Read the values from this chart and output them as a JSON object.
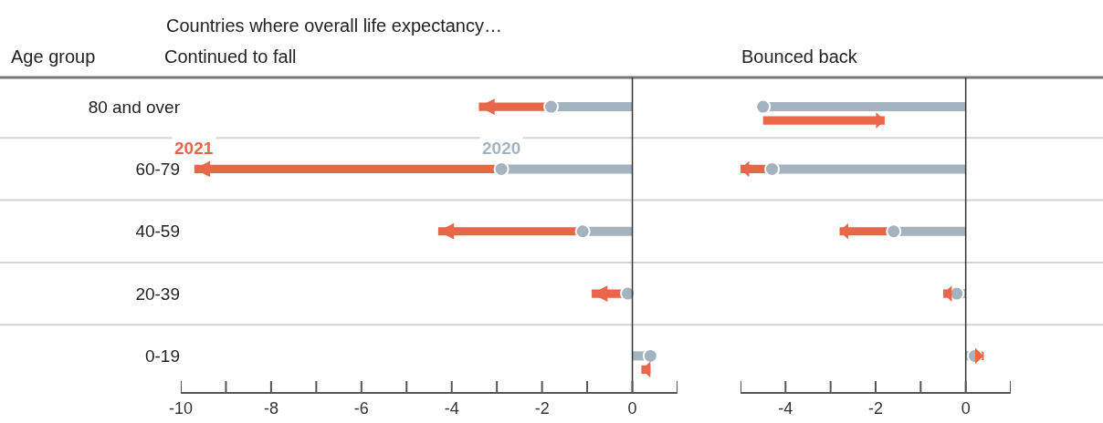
{
  "chart_data": [
    {
      "type": "bar",
      "orientation": "horizontal",
      "title": "Continued to fall",
      "ylabel": "Age group",
      "annotations": [
        "Countries where overall life expectancy…"
      ],
      "categories": [
        "80 and over",
        "60-79",
        "40-59",
        "20-39",
        "0-19"
      ],
      "xlim": [
        -10,
        1
      ],
      "xticks": [
        -10,
        {
          "value": -9,
          "label": null
        },
        -8,
        {
          "value": -7,
          "label": null
        },
        -6,
        {
          "value": -5,
          "label": null
        },
        -4,
        {
          "value": -3,
          "label": null
        },
        -2,
        {
          "value": -1,
          "label": null
        },
        0,
        {
          "value": 1,
          "label": null
        }
      ],
      "grid": "y",
      "ref_lines": [
        {
          "axis": "x",
          "value": 0,
          "color": "#333333"
        }
      ],
      "series": [
        {
          "name": "2020",
          "type": "lollipop",
          "marker": "circle",
          "color": "#a3b4c0",
          "values": [
            -1.8,
            -2.9,
            -1.1,
            -0.1,
            0.4
          ]
        },
        {
          "name": "2021",
          "type": "bar",
          "color": "#e8664a",
          "base": [
            -1.8,
            -2.9,
            -1.1,
            -0.1,
            0.4
          ],
          "values": [
            -1.6,
            -6.8,
            -3.2,
            -0.8,
            -0.2
          ]
        }
      ]
    },
    {
      "type": "bar",
      "orientation": "horizontal",
      "title": "Bounced back",
      "categories": [
        null,
        null,
        null,
        null,
        null
      ],
      "xlim": [
        -5,
        1
      ],
      "xticks": [
        {
          "value": -5,
          "label": null
        },
        -4,
        {
          "value": -3,
          "label": null
        },
        -2,
        {
          "value": -1,
          "label": null
        },
        0,
        {
          "value": 1,
          "label": null
        }
      ],
      "grid": "y",
      "tick_labels": "x",
      "ref_lines": [
        {
          "axis": "x",
          "value": 0,
          "color": "#333333"
        }
      ],
      "series": [
        {
          "type": "lollipop",
          "marker": "circle",
          "color": "#a3b4c0",
          "values": [
            -4.5,
            -4.3,
            -1.6,
            -0.2,
            0.2
          ]
        },
        {
          "type": "bar",
          "color": "#e8664a",
          "base": [
            -4.5,
            -4.3,
            -1.6,
            -0.2,
            0.2
          ],
          "values": [
            2.7,
            -0.7,
            -1.2,
            -0.3,
            0.2
          ]
        }
      ]
    }
  ]
}
